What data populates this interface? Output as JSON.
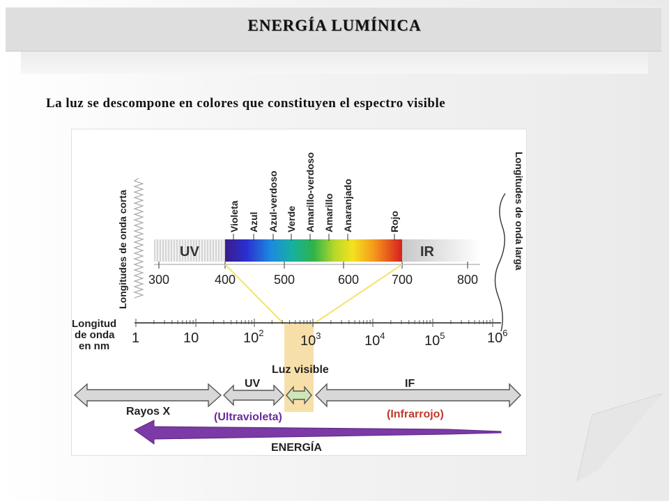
{
  "slide": {
    "title": "ENERGÍA LUMÍNICA",
    "subtitle": "La luz se descompone en colores que constituyen el espectro visible"
  },
  "diagram": {
    "color_labels": [
      "Violeta",
      "Azul",
      "Azul-verdoso",
      "Verde",
      "Amarillo-verdoso",
      "Amarillo",
      "Anaranjado",
      "Rojo"
    ],
    "short_wave_label": "Longitudes de onda corta",
    "long_wave_label": "Longitudes de onda larga",
    "uv_band_label": "UV",
    "ir_band_label": "IR",
    "nm_ticks": [
      "300",
      "400",
      "500",
      "600",
      "700",
      "800"
    ],
    "scale_label_lines": [
      "Longitud",
      "de onda",
      "en nm"
    ],
    "scale_ticks": [
      {
        "base": "1",
        "exp": ""
      },
      {
        "base": "10",
        "exp": ""
      },
      {
        "base": "10",
        "exp": "2"
      },
      {
        "base": "10",
        "exp": "3"
      },
      {
        "base": "10",
        "exp": "4"
      },
      {
        "base": "10",
        "exp": "5"
      },
      {
        "base": "10",
        "exp": "6"
      }
    ],
    "visible_label": "Luz visible",
    "xray_label": "Rayos X",
    "uv_label": "UV",
    "uv_name": "(Ultravioleta)",
    "if_label": "IF",
    "if_name": "(Infrarrojo)",
    "energy_label": "ENERGÍA",
    "colors": {
      "uv_text": "#6a2c9a",
      "ir_text": "#c0392b",
      "energy_arrow": "#7b3aa6",
      "visible_band": "#f6dca0",
      "beam": "#f2e46a"
    }
  }
}
